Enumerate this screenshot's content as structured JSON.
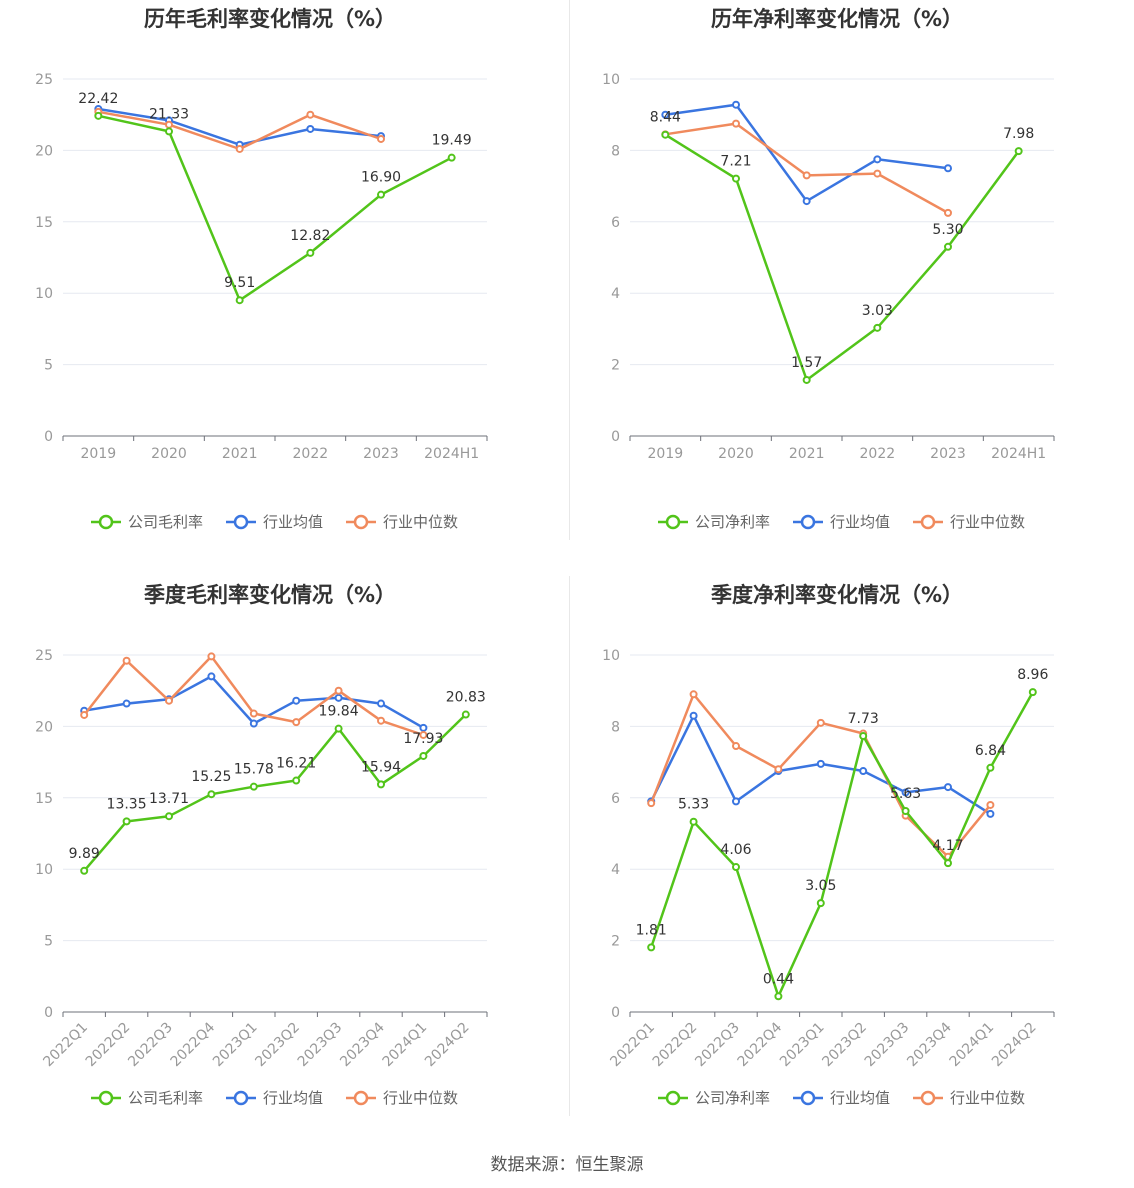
{
  "colors": {
    "company": "#52c41a",
    "avg": "#3a75e0",
    "median": "#f08a5d"
  },
  "footer": "数据来源：恒生聚源",
  "chart_data": [
    {
      "type": "line",
      "title": "历年毛利率变化情况（%）",
      "categories": [
        "2019",
        "2020",
        "2021",
        "2022",
        "2023",
        "2024H1"
      ],
      "ylim": [
        0,
        25
      ],
      "yticks": [
        0,
        5,
        10,
        15,
        20,
        25
      ],
      "rotate_x": false,
      "series": [
        {
          "name": "公司毛利率",
          "key": "company",
          "values": [
            22.42,
            21.33,
            9.51,
            12.82,
            16.9,
            19.49
          ],
          "labels": [
            "22.42",
            "21.33",
            "9.51",
            "12.82",
            "16.90",
            "19.49"
          ]
        },
        {
          "name": "行业均值",
          "key": "avg",
          "values": [
            22.9,
            22.1,
            20.4,
            21.5,
            21.0,
            null
          ]
        },
        {
          "name": "行业中位数",
          "key": "median",
          "values": [
            22.7,
            21.8,
            20.1,
            22.5,
            20.8,
            null
          ]
        }
      ]
    },
    {
      "type": "line",
      "title": "历年净利率变化情况（%）",
      "categories": [
        "2019",
        "2020",
        "2021",
        "2022",
        "2023",
        "2024H1"
      ],
      "ylim": [
        0,
        10
      ],
      "yticks": [
        0,
        2,
        4,
        6,
        8,
        10
      ],
      "rotate_x": false,
      "series": [
        {
          "name": "公司净利率",
          "key": "company",
          "values": [
            8.44,
            7.21,
            1.57,
            3.03,
            5.3,
            7.98
          ],
          "labels": [
            "8.44",
            "7.21",
            "1.57",
            "3.03",
            "5.30",
            "7.98"
          ]
        },
        {
          "name": "行业均值",
          "key": "avg",
          "values": [
            9.0,
            9.28,
            6.58,
            7.75,
            7.5,
            null
          ]
        },
        {
          "name": "行业中位数",
          "key": "median",
          "values": [
            8.45,
            8.75,
            7.3,
            7.35,
            6.25,
            null
          ]
        }
      ]
    },
    {
      "type": "line",
      "title": "季度毛利率变化情况（%）",
      "categories": [
        "2022Q1",
        "2022Q2",
        "2022Q3",
        "2022Q4",
        "2023Q1",
        "2023Q2",
        "2023Q3",
        "2023Q4",
        "2024Q1",
        "2024Q2"
      ],
      "ylim": [
        0,
        25
      ],
      "yticks": [
        0,
        5,
        10,
        15,
        20,
        25
      ],
      "rotate_x": true,
      "series": [
        {
          "name": "公司毛利率",
          "key": "company",
          "values": [
            9.89,
            13.35,
            13.71,
            15.25,
            15.78,
            16.21,
            19.84,
            15.94,
            17.93,
            20.83
          ],
          "labels": [
            "9.89",
            "13.35",
            "13.71",
            "15.25",
            "15.78",
            "16.21",
            "19.84",
            "15.94",
            "17.93",
            "20.83"
          ]
        },
        {
          "name": "行业均值",
          "key": "avg",
          "values": [
            21.1,
            21.6,
            21.9,
            23.5,
            20.2,
            21.8,
            22.0,
            21.6,
            19.9,
            null
          ]
        },
        {
          "name": "行业中位数",
          "key": "median",
          "values": [
            20.8,
            24.6,
            21.8,
            24.9,
            20.9,
            20.3,
            22.5,
            20.4,
            19.4,
            null
          ]
        }
      ]
    },
    {
      "type": "line",
      "title": "季度净利率变化情况（%）",
      "categories": [
        "2022Q1",
        "2022Q2",
        "2022Q3",
        "2022Q4",
        "2023Q1",
        "2023Q2",
        "2023Q3",
        "2023Q4",
        "2024Q1",
        "2024Q2"
      ],
      "ylim": [
        0,
        10
      ],
      "yticks": [
        0,
        2,
        4,
        6,
        8,
        10
      ],
      "rotate_x": true,
      "series": [
        {
          "name": "公司净利率",
          "key": "company",
          "values": [
            1.81,
            5.33,
            4.06,
            0.44,
            3.05,
            7.73,
            5.63,
            4.17,
            6.84,
            8.96
          ],
          "labels": [
            "1.81",
            "5.33",
            "4.06",
            "0.44",
            "3.05",
            "7.73",
            "5.63",
            "4.17",
            "6.84",
            "8.96"
          ]
        },
        {
          "name": "行业均值",
          "key": "avg",
          "values": [
            5.9,
            8.3,
            5.9,
            6.75,
            6.95,
            6.75,
            6.15,
            6.3,
            5.55,
            null
          ]
        },
        {
          "name": "行业中位数",
          "key": "median",
          "values": [
            5.85,
            8.9,
            7.45,
            6.8,
            8.1,
            7.8,
            5.5,
            4.35,
            5.8,
            null
          ]
        }
      ]
    }
  ]
}
